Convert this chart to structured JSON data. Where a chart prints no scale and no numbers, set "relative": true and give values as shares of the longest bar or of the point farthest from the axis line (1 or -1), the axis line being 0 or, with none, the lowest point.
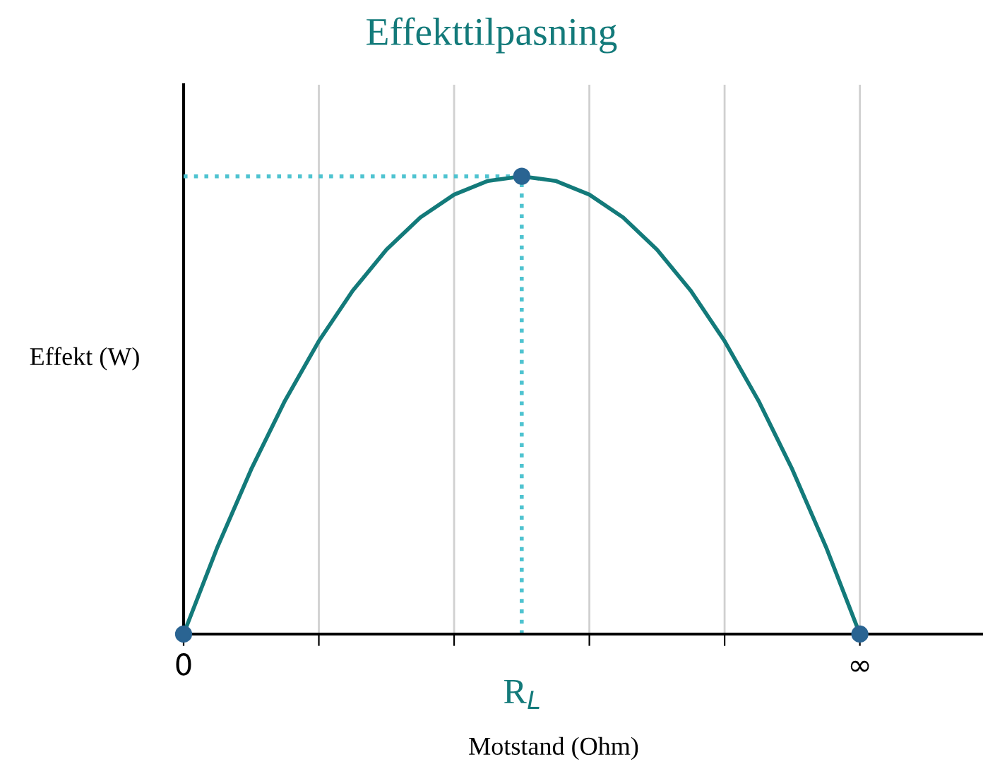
{
  "chart_data": {
    "type": "line",
    "title": "Effekttilpasning",
    "xlabel": "Motstand (Ohm)",
    "ylabel": "Effekt (W)",
    "relative": true,
    "categories": [
      "0",
      null,
      null,
      null,
      null,
      null,
      null,
      null,
      null,
      null,
      null,
      null,
      null,
      null,
      null,
      null,
      null,
      null,
      null,
      null,
      "∞"
    ],
    "grid": "x",
    "legend": false,
    "series": [
      {
        "type": "line",
        "color": "#4ec3d0",
        "line_style": "dotted",
        "marker": "none",
        "values": [
          1,
          1,
          1,
          1,
          1,
          1,
          1,
          1,
          1,
          1,
          1,
          null,
          null,
          null,
          null,
          null,
          null,
          null,
          null,
          null,
          null
        ]
      },
      {
        "color": "#137a7a",
        "line_style": "solid",
        "marker": "none",
        "values": [
          0,
          0.19,
          0.36,
          0.51,
          0.64,
          0.75,
          0.84,
          0.91,
          0.96,
          0.99,
          1,
          0.99,
          0.96,
          0.91,
          0.84,
          0.75,
          0.64,
          0.51,
          0.36,
          0.19,
          0
        ]
      },
      {
        "type": "lollipop",
        "color": "#2a6492",
        "line_style": "dotted",
        "marker": "circle",
        "values": [
          0,
          null,
          null,
          null,
          null,
          null,
          null,
          null,
          null,
          null,
          1,
          null,
          null,
          null,
          null,
          null,
          null,
          null,
          null,
          null,
          0
        ]
      }
    ],
    "annotations": [
      "R$_{L}$"
    ]
  }
}
